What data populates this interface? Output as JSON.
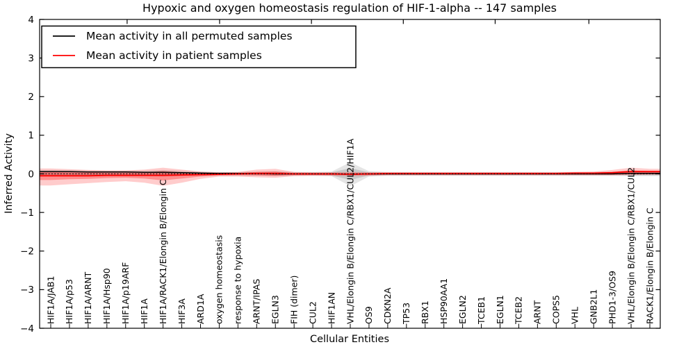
{
  "chart_data": {
    "type": "line",
    "title": "Hypoxic and oxygen homeostasis regulation of HIF-1-alpha -- 147 samples",
    "xlabel": "Cellular Entities",
    "ylabel": "Inferred Activity",
    "ylim": [
      -4,
      4
    ],
    "yticks": [
      4,
      3,
      2,
      1,
      0,
      -1,
      -2,
      -3,
      -4
    ],
    "ytick_labels": [
      "4",
      "3",
      "2",
      "1",
      "0",
      "−1",
      "−2",
      "−3",
      "−4"
    ],
    "grid": false,
    "legend_position": "upper left",
    "categories": [
      "HIF1A/JAB1",
      "HIF1A/p53",
      "HIF1A/ARNT",
      "HIF1A/Hsp90",
      "HIF1A/p19ARF",
      "HIF1A",
      "HIF1A/RACK1/Elongin B/Elongin C",
      "HIF3A",
      "ARD1A",
      "oxygen homeostasis",
      "response to hypoxia",
      "ARNT/IPAS",
      "EGLN3",
      "FIH (dimer)",
      "CUL2",
      "HIF1AN",
      "VHL/Elongin B/Elongin C/RBX1/CUL2/HIF1A",
      "OS9",
      "CDKN2A",
      "TP53",
      "RBX1",
      "HSP90AA1",
      "EGLN2",
      "TCEB1",
      "EGLN1",
      "TCEB2",
      "ARNT",
      "COPS5",
      "VHL",
      "GNB2L1",
      "PHD1-3/OS9",
      "VHL/Elongin B/Elongin C/RBX1/CUL2",
      "RACK1/Elongin B/Elongin C"
    ],
    "series": [
      {
        "name": "Mean activity in all permuted samples",
        "color": "#000000",
        "values": [
          0.06,
          0.06,
          0.05,
          0.05,
          0.05,
          0.04,
          0.04,
          0.03,
          0.02,
          0.01,
          0.01,
          0.01,
          0.0,
          0.0,
          0.0,
          0.0,
          -0.01,
          0.0,
          0.0,
          0.0,
          0.0,
          0.0,
          0.0,
          0.0,
          0.0,
          0.0,
          0.0,
          0.0,
          0.0,
          0.0,
          0.0,
          0.01,
          0.01
        ]
      },
      {
        "name": "Mean activity in patient samples",
        "color": "#ff0000",
        "values": [
          -0.05,
          -0.05,
          -0.05,
          -0.04,
          -0.04,
          -0.04,
          -0.04,
          -0.03,
          -0.02,
          -0.01,
          0.0,
          0.01,
          0.01,
          0.0,
          0.0,
          0.0,
          -0.01,
          0.0,
          0.01,
          0.01,
          0.01,
          0.01,
          0.01,
          0.01,
          0.01,
          0.01,
          0.01,
          0.01,
          0.02,
          0.02,
          0.03,
          0.06,
          0.06
        ]
      }
    ],
    "bands": [
      {
        "name": "permuted-std-outer",
        "color": "rgba(0,0,0,0.10)",
        "upper": [
          0.1,
          0.09,
          0.09,
          0.08,
          0.08,
          0.08,
          0.1,
          0.08,
          0.06,
          0.05,
          0.05,
          0.06,
          0.07,
          0.05,
          0.05,
          0.06,
          0.3,
          0.07,
          0.05,
          0.05,
          0.05,
          0.05,
          0.05,
          0.05,
          0.05,
          0.05,
          0.05,
          0.05,
          0.05,
          0.05,
          0.06,
          0.07,
          0.07
        ],
        "lower": [
          -0.06,
          -0.06,
          -0.06,
          -0.05,
          -0.05,
          -0.05,
          -0.07,
          -0.05,
          -0.05,
          -0.05,
          -0.05,
          -0.05,
          -0.06,
          -0.05,
          -0.05,
          -0.06,
          -0.32,
          -0.07,
          -0.05,
          -0.05,
          -0.05,
          -0.05,
          -0.05,
          -0.05,
          -0.05,
          -0.05,
          -0.05,
          -0.05,
          -0.05,
          -0.05,
          -0.05,
          -0.06,
          -0.06
        ]
      },
      {
        "name": "permuted-std-inner",
        "color": "rgba(0,0,0,0.12)",
        "upper": [
          0.07,
          0.06,
          0.06,
          0.05,
          0.05,
          0.05,
          0.07,
          0.05,
          0.04,
          0.03,
          0.03,
          0.04,
          0.05,
          0.03,
          0.03,
          0.04,
          0.15,
          0.04,
          0.03,
          0.03,
          0.03,
          0.03,
          0.03,
          0.03,
          0.03,
          0.03,
          0.03,
          0.03,
          0.03,
          0.03,
          0.04,
          0.05,
          0.05
        ],
        "lower": [
          -0.04,
          -0.04,
          -0.04,
          -0.03,
          -0.03,
          -0.03,
          -0.04,
          -0.03,
          -0.03,
          -0.03,
          -0.03,
          -0.03,
          -0.04,
          -0.03,
          -0.03,
          -0.04,
          -0.16,
          -0.04,
          -0.03,
          -0.03,
          -0.03,
          -0.03,
          -0.03,
          -0.03,
          -0.03,
          -0.03,
          -0.03,
          -0.03,
          -0.03,
          -0.03,
          -0.03,
          -0.04,
          -0.04
        ]
      },
      {
        "name": "patient-std-outer",
        "color": "rgba(255,0,0,0.20)",
        "upper": [
          0.14,
          0.12,
          0.1,
          0.09,
          0.09,
          0.11,
          0.16,
          0.11,
          0.06,
          0.04,
          0.05,
          0.11,
          0.13,
          0.05,
          0.04,
          0.04,
          0.05,
          0.04,
          0.04,
          0.04,
          0.04,
          0.04,
          0.04,
          0.04,
          0.04,
          0.04,
          0.04,
          0.04,
          0.05,
          0.06,
          0.1,
          0.16,
          0.13
        ],
        "lower": [
          -0.3,
          -0.27,
          -0.24,
          -0.21,
          -0.19,
          -0.23,
          -0.31,
          -0.23,
          -0.13,
          -0.07,
          -0.07,
          -0.09,
          -0.1,
          -0.06,
          -0.05,
          -0.05,
          -0.06,
          -0.05,
          -0.04,
          -0.04,
          -0.04,
          -0.04,
          -0.04,
          -0.04,
          -0.04,
          -0.04,
          -0.04,
          -0.04,
          -0.04,
          -0.04,
          -0.04,
          -0.03,
          -0.02
        ]
      },
      {
        "name": "patient-std-inner",
        "color": "rgba(255,0,0,0.30)",
        "upper": [
          0.05,
          0.04,
          0.04,
          0.03,
          0.03,
          0.04,
          0.07,
          0.04,
          0.02,
          0.02,
          0.02,
          0.05,
          0.06,
          0.02,
          0.02,
          0.02,
          0.02,
          0.02,
          0.02,
          0.02,
          0.02,
          0.02,
          0.02,
          0.02,
          0.02,
          0.02,
          0.02,
          0.02,
          0.02,
          0.03,
          0.05,
          0.09,
          0.07
        ],
        "lower": [
          -0.16,
          -0.14,
          -0.13,
          -0.11,
          -0.1,
          -0.12,
          -0.17,
          -0.12,
          -0.07,
          -0.04,
          -0.03,
          -0.04,
          -0.05,
          -0.03,
          -0.03,
          -0.03,
          -0.03,
          -0.03,
          -0.02,
          -0.02,
          -0.02,
          -0.02,
          -0.02,
          -0.02,
          -0.02,
          -0.02,
          -0.02,
          -0.02,
          -0.02,
          -0.02,
          -0.02,
          -0.01,
          -0.01
        ]
      }
    ],
    "zero_line": {
      "value": 0,
      "style": "dotted",
      "color": "#000000"
    }
  }
}
